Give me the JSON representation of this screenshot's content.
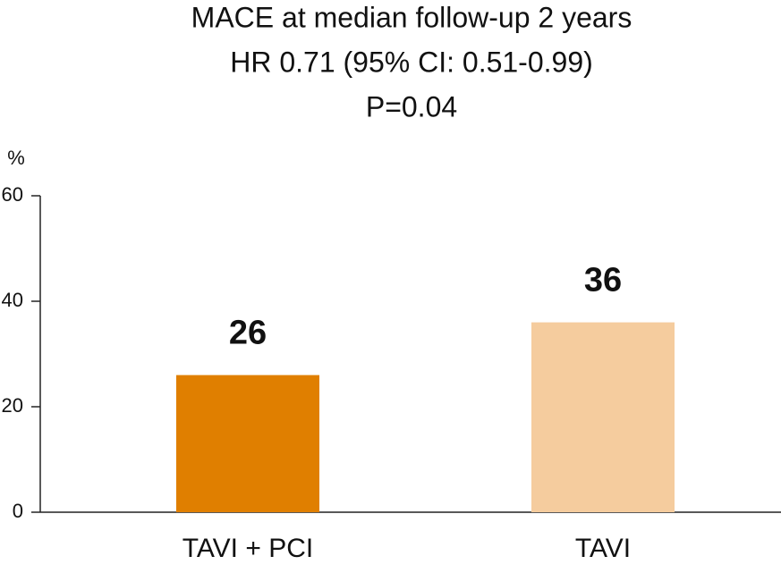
{
  "chart_data": {
    "type": "bar",
    "title": "MACE at median follow-up 2 years",
    "subtitle": [
      "HR 0.71 (95% CI: 0.51-0.99)",
      "P=0.04"
    ],
    "y_label": "%",
    "categories": [
      "TAVI + PCI",
      "TAVI"
    ],
    "values": [
      26,
      36
    ],
    "colors": [
      "#e07f00",
      "#f5cc9e"
    ],
    "ylim": [
      0,
      60
    ],
    "yticks": [
      0,
      20,
      40,
      60
    ],
    "grid": false
  }
}
